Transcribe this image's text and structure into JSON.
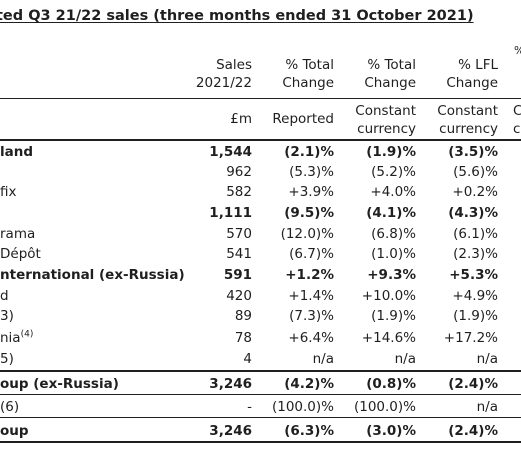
{
  "title": "ted Q3 21/22 sales (three months ended 31 October 2021)",
  "header": {
    "col1": [
      "Sales",
      "2021/22"
    ],
    "col2": [
      "% Total",
      "Change"
    ],
    "col3": [
      "% Total",
      "Change"
    ],
    "col4": [
      "% LFL",
      "Change"
    ],
    "edge_top": "%"
  },
  "subheader": {
    "col1": "£m",
    "col2": "Reported",
    "col3": [
      "Constant",
      "currency"
    ],
    "col4": [
      "Constant",
      "currency"
    ],
    "edge": [
      "C",
      "c"
    ]
  },
  "rows": [
    {
      "label": "land",
      "sup": "",
      "bold": true,
      "c1": "1,544",
      "c2": "(2.1)%",
      "c3": "(1.9)%",
      "c4": "(3.5)%"
    },
    {
      "label": "",
      "sup": "",
      "bold": false,
      "c1": "962",
      "c2": "(5.3)%",
      "c3": "(5.2)%",
      "c4": "(5.6)%"
    },
    {
      "label": "fix",
      "sup": "",
      "bold": false,
      "c1": "582",
      "c2": "+3.9%",
      "c3": "+4.0%",
      "c4": "+0.2%"
    },
    {
      "label": "",
      "sup": "",
      "bold": true,
      "c1": "1,111",
      "c2": "(9.5)%",
      "c3": "(4.1)%",
      "c4": "(4.3)%"
    },
    {
      "label": "rama",
      "sup": "",
      "bold": false,
      "c1": "570",
      "c2": "(12.0)%",
      "c3": "(6.8)%",
      "c4": "(6.1)%"
    },
    {
      "label": "Dépôt",
      "sup": "",
      "bold": false,
      "c1": "541",
      "c2": "(6.7)%",
      "c3": "(1.0)%",
      "c4": "(2.3)%"
    },
    {
      "label": "nternational (ex-Russia)",
      "sup": "",
      "bold": true,
      "c1": "591",
      "c2": "+1.2%",
      "c3": "+9.3%",
      "c4": "+5.3%"
    },
    {
      "label": "d",
      "sup": "",
      "bold": false,
      "c1": "420",
      "c2": "+1.4%",
      "c3": "+10.0%",
      "c4": "+4.9%"
    },
    {
      "label": "3)",
      "sup": "",
      "bold": false,
      "c1": "89",
      "c2": "(7.3)%",
      "c3": "(1.9)%",
      "c4": "(1.9)%"
    },
    {
      "label": "nia",
      "sup": "(4)",
      "bold": false,
      "c1": "78",
      "c2": "+6.4%",
      "c3": "+14.6%",
      "c4": "+17.2%"
    },
    {
      "label": "5)",
      "sup": "",
      "bold": false,
      "c1": "4",
      "c2": "n/a",
      "c3": "n/a",
      "c4": "n/a"
    },
    {
      "label": "oup (ex-Russia)",
      "sup": "",
      "bold": true,
      "c1": "3,246",
      "c2": "(4.2)%",
      "c3": "(0.8)%",
      "c4": "(2.4)%"
    },
    {
      "label": "(6)",
      "sup": "",
      "bold": false,
      "c1": "-",
      "c2": "(100.0)%",
      "c3": "(100.0)%",
      "c4": "n/a"
    },
    {
      "label": "oup",
      "sup": "",
      "bold": true,
      "c1": "3,246",
      "c2": "(6.3)%",
      "c3": "(3.0)%",
      "c4": "(2.4)%"
    }
  ]
}
